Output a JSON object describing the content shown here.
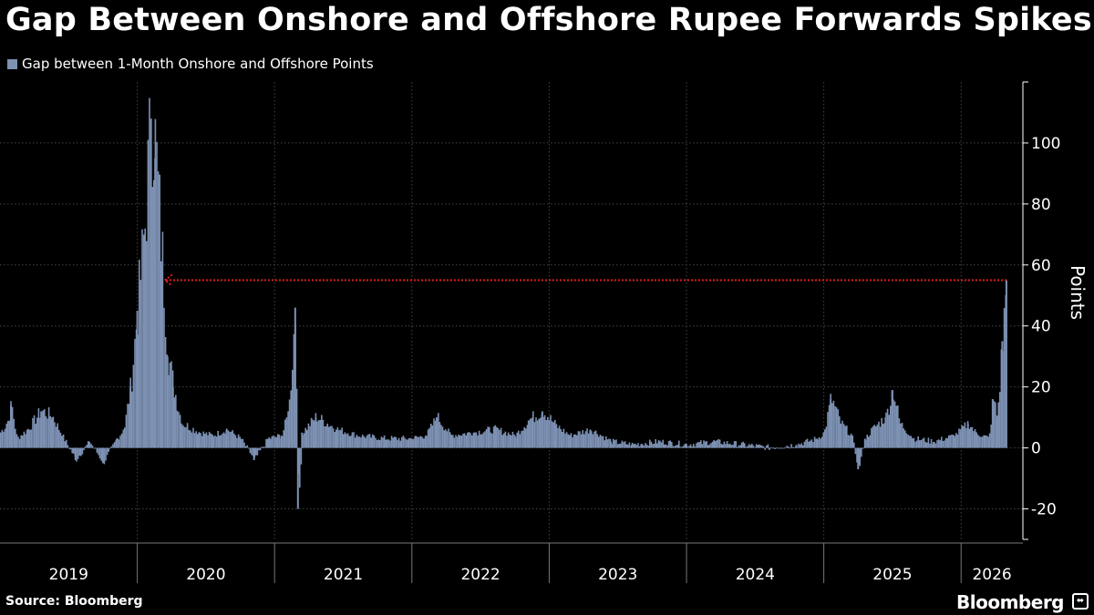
{
  "title": "Gap Between Onshore and Offshore Rupee Forwards Spikes",
  "legend": {
    "label": "Gap between 1-Month Onshore and Offshore Points",
    "color": "#7d91b3"
  },
  "source": "Source: Bloomberg",
  "brand": "Bloomberg",
  "chart_data": {
    "type": "area",
    "title": "Gap Between Onshore and Offshore Rupee Forwards Spikes",
    "ylabel": "Points",
    "ylim": [
      -30,
      120
    ],
    "yticks": [
      -20,
      0,
      20,
      40,
      60,
      80,
      100
    ],
    "grid": true,
    "legend_position": "top-left",
    "x_categories": [
      "2019",
      "2020",
      "2021",
      "2022",
      "2023",
      "2024",
      "2025",
      "2026"
    ],
    "year_boundaries": [
      2020,
      2021,
      2022,
      2023,
      2024,
      2025,
      2026
    ],
    "series": [
      {
        "name": "Gap between 1-Month Onshore and Offshore Points",
        "color": "#7d91b3",
        "points": [
          [
            2019.0,
            5
          ],
          [
            2019.05,
            8
          ],
          [
            2019.08,
            14
          ],
          [
            2019.12,
            3
          ],
          [
            2019.2,
            6
          ],
          [
            2019.3,
            12
          ],
          [
            2019.38,
            10
          ],
          [
            2019.45,
            4
          ],
          [
            2019.55,
            -4
          ],
          [
            2019.65,
            2
          ],
          [
            2019.75,
            -5
          ],
          [
            2019.85,
            3
          ],
          [
            2019.9,
            6
          ],
          [
            2019.95,
            20
          ],
          [
            2020.0,
            45
          ],
          [
            2020.05,
            70
          ],
          [
            2020.1,
            108
          ],
          [
            2020.13,
            95
          ],
          [
            2020.18,
            60
          ],
          [
            2020.22,
            30
          ],
          [
            2020.26,
            20
          ],
          [
            2020.32,
            8
          ],
          [
            2020.45,
            5
          ],
          [
            2020.55,
            4
          ],
          [
            2020.65,
            6
          ],
          [
            2020.75,
            3
          ],
          [
            2020.85,
            -4
          ],
          [
            2020.95,
            3
          ],
          [
            2021.05,
            4
          ],
          [
            2021.1,
            12
          ],
          [
            2021.15,
            46
          ],
          [
            2021.17,
            -20
          ],
          [
            2021.2,
            5
          ],
          [
            2021.3,
            10
          ],
          [
            2021.45,
            6
          ],
          [
            2021.6,
            4
          ],
          [
            2021.8,
            3
          ],
          [
            2022.0,
            3
          ],
          [
            2022.1,
            4
          ],
          [
            2022.18,
            10
          ],
          [
            2022.28,
            4
          ],
          [
            2022.45,
            5
          ],
          [
            2022.6,
            6
          ],
          [
            2022.75,
            4
          ],
          [
            2022.85,
            9
          ],
          [
            2022.95,
            12
          ],
          [
            2023.05,
            7
          ],
          [
            2023.15,
            4
          ],
          [
            2023.3,
            6
          ],
          [
            2023.45,
            2
          ],
          [
            2023.6,
            1
          ],
          [
            2023.8,
            2
          ],
          [
            2024.0,
            1
          ],
          [
            2024.2,
            2
          ],
          [
            2024.4,
            1
          ],
          [
            2024.6,
            0
          ],
          [
            2024.8,
            1
          ],
          [
            2024.95,
            3
          ],
          [
            2025.0,
            5
          ],
          [
            2025.05,
            16
          ],
          [
            2025.12,
            8
          ],
          [
            2025.2,
            4
          ],
          [
            2025.25,
            -7
          ],
          [
            2025.3,
            3
          ],
          [
            2025.35,
            6
          ],
          [
            2025.45,
            10
          ],
          [
            2025.5,
            19
          ],
          [
            2025.55,
            8
          ],
          [
            2025.65,
            3
          ],
          [
            2025.8,
            2
          ],
          [
            2025.95,
            4
          ],
          [
            2026.05,
            8
          ],
          [
            2026.1,
            5
          ],
          [
            2026.2,
            3
          ],
          [
            2026.23,
            16
          ],
          [
            2026.26,
            10
          ],
          [
            2026.3,
            35
          ],
          [
            2026.33,
            55
          ]
        ]
      }
    ],
    "annotations": [
      {
        "type": "reference-arrow",
        "value": 55,
        "from": 2026.33,
        "to": 2020.2,
        "color": "#e02020",
        "style": "dotted"
      }
    ]
  }
}
